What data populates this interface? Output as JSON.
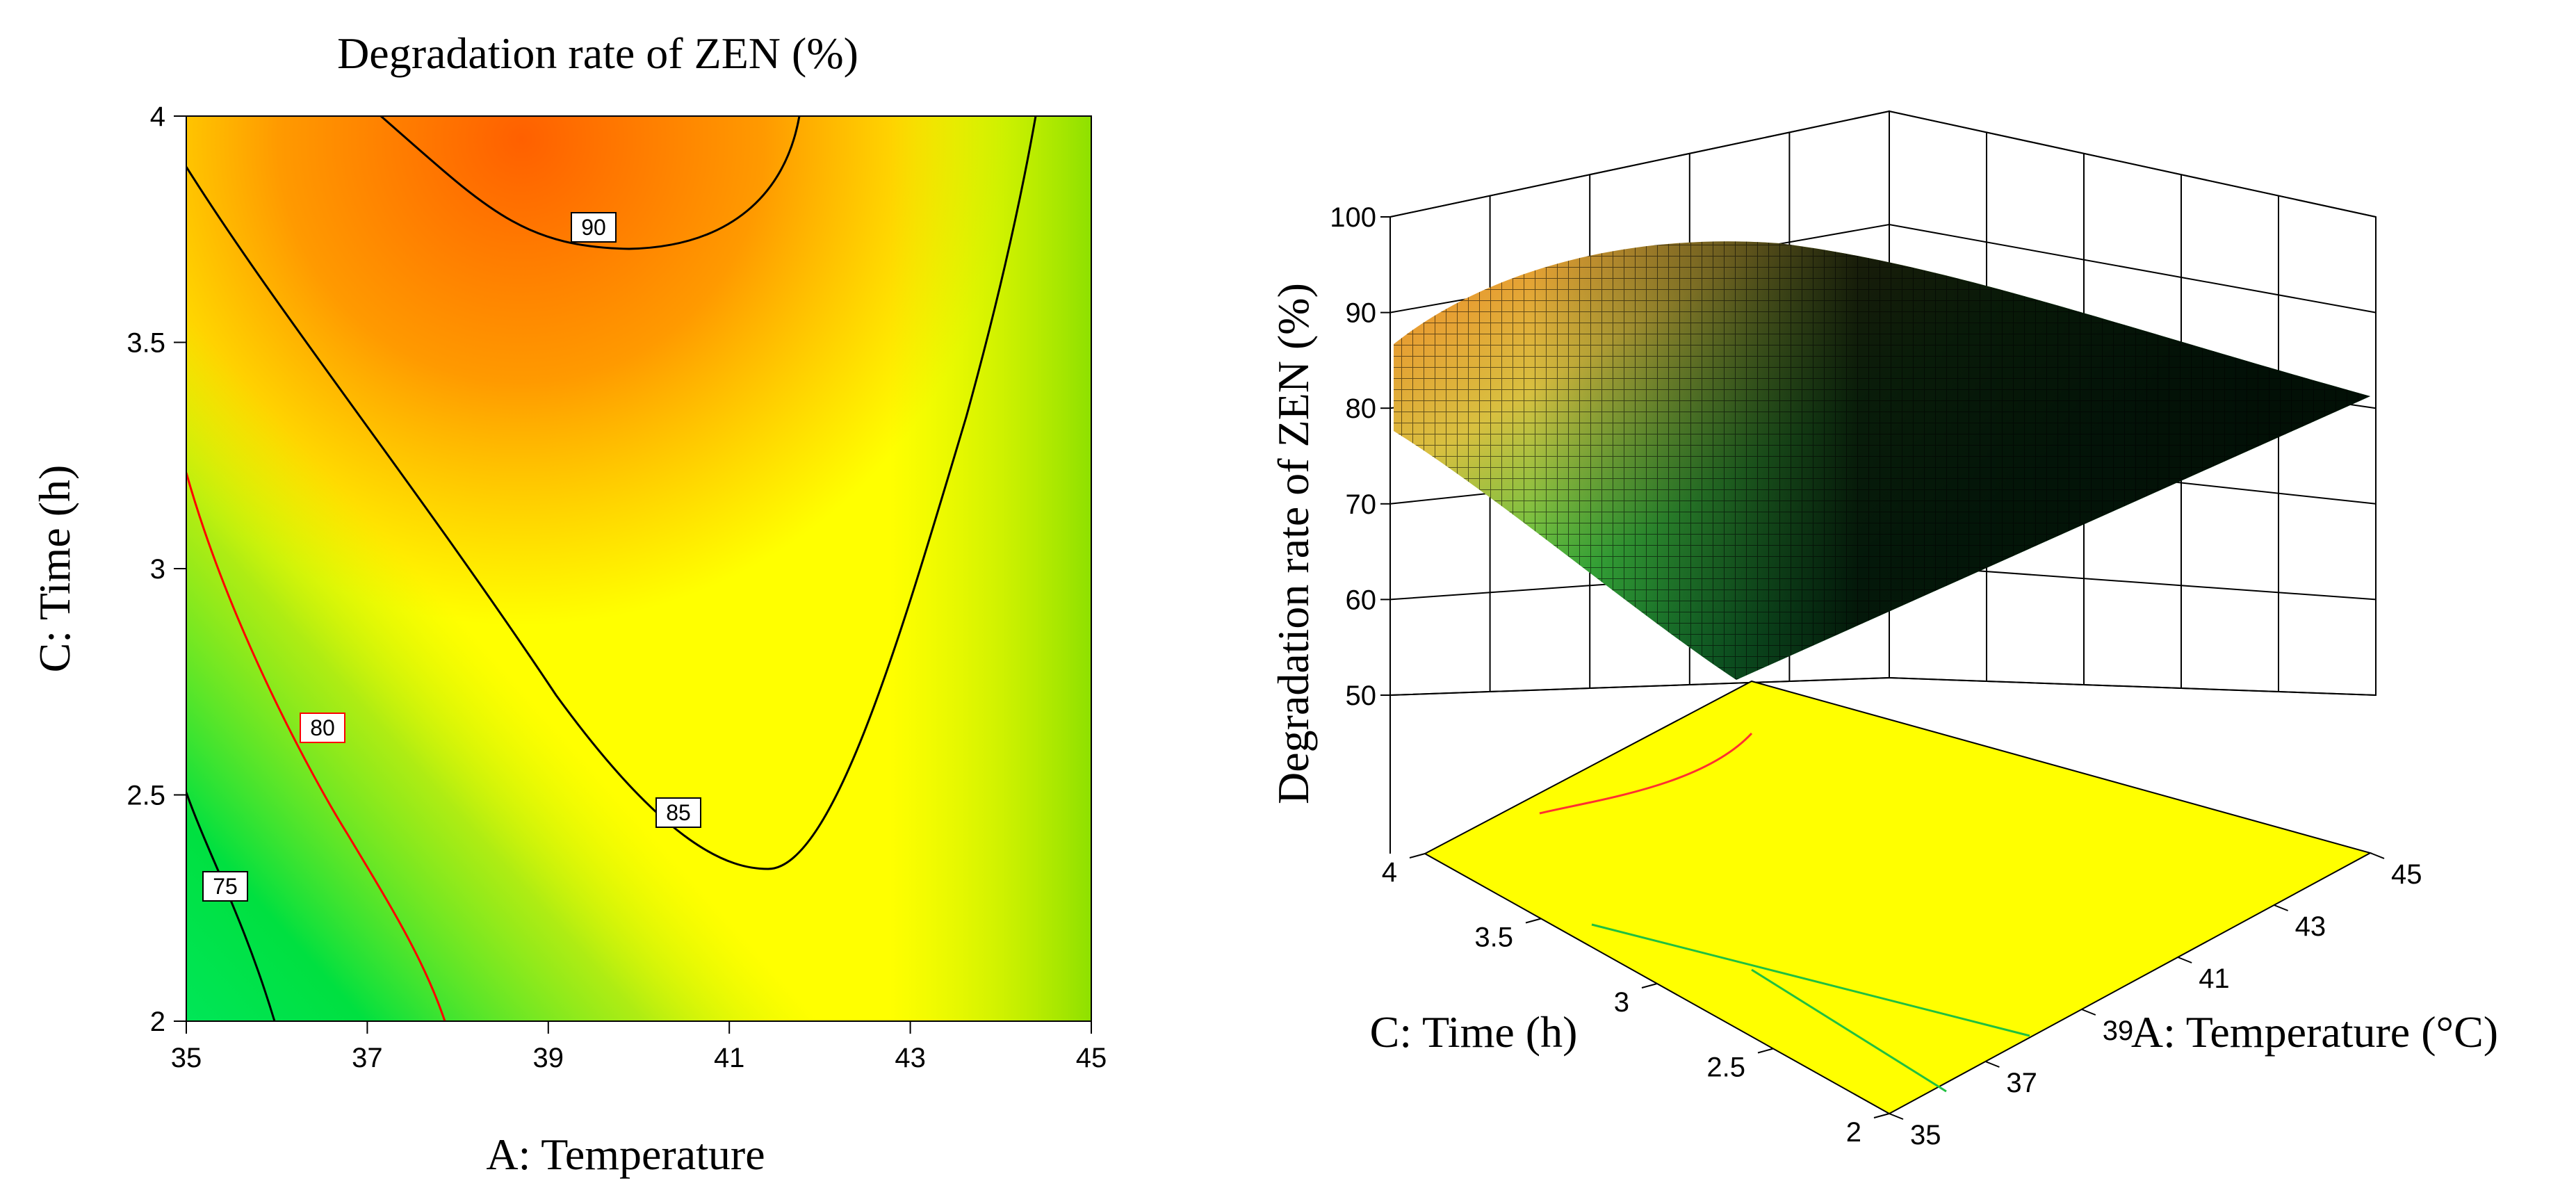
{
  "chart_data": [
    {
      "type": "contour",
      "title": "Degradation rate of ZEN (%)",
      "xlabel": "A: Temperature",
      "ylabel": "C: Time (h)",
      "xlim": [
        35,
        45
      ],
      "ylim": [
        2,
        4
      ],
      "x_ticks": [
        "35",
        "37",
        "39",
        "41",
        "43",
        "45"
      ],
      "y_ticks": [
        "2",
        "2.5",
        "3",
        "3.5",
        "4"
      ],
      "contour_levels": [
        "75",
        "80",
        "85",
        "90"
      ],
      "highlighted_level": "80",
      "colors": {
        "low": "#00e040",
        "mid": "#ffff00",
        "high": "#ff6000",
        "highlight_line": "#ff0000"
      }
    },
    {
      "type": "surface3d",
      "zlabel": "Degradation rate of ZEN (%)",
      "xlabel": "A: Temperature (°C)",
      "ylabel": "C: Time (h)",
      "xlim": [
        35,
        45
      ],
      "ylim": [
        2,
        4
      ],
      "zlim": [
        50,
        100
      ],
      "x_ticks": [
        "35",
        "37",
        "39",
        "41",
        "43",
        "45"
      ],
      "y_ticks": [
        "2",
        "2.5",
        "3",
        "3.5",
        "4"
      ],
      "z_ticks": [
        "50",
        "60",
        "70",
        "80",
        "90",
        "100"
      ],
      "colors": {
        "floor": "#ffff00",
        "surface_low": "#1faa3a",
        "surface_high": "#f08a2a"
      }
    }
  ]
}
